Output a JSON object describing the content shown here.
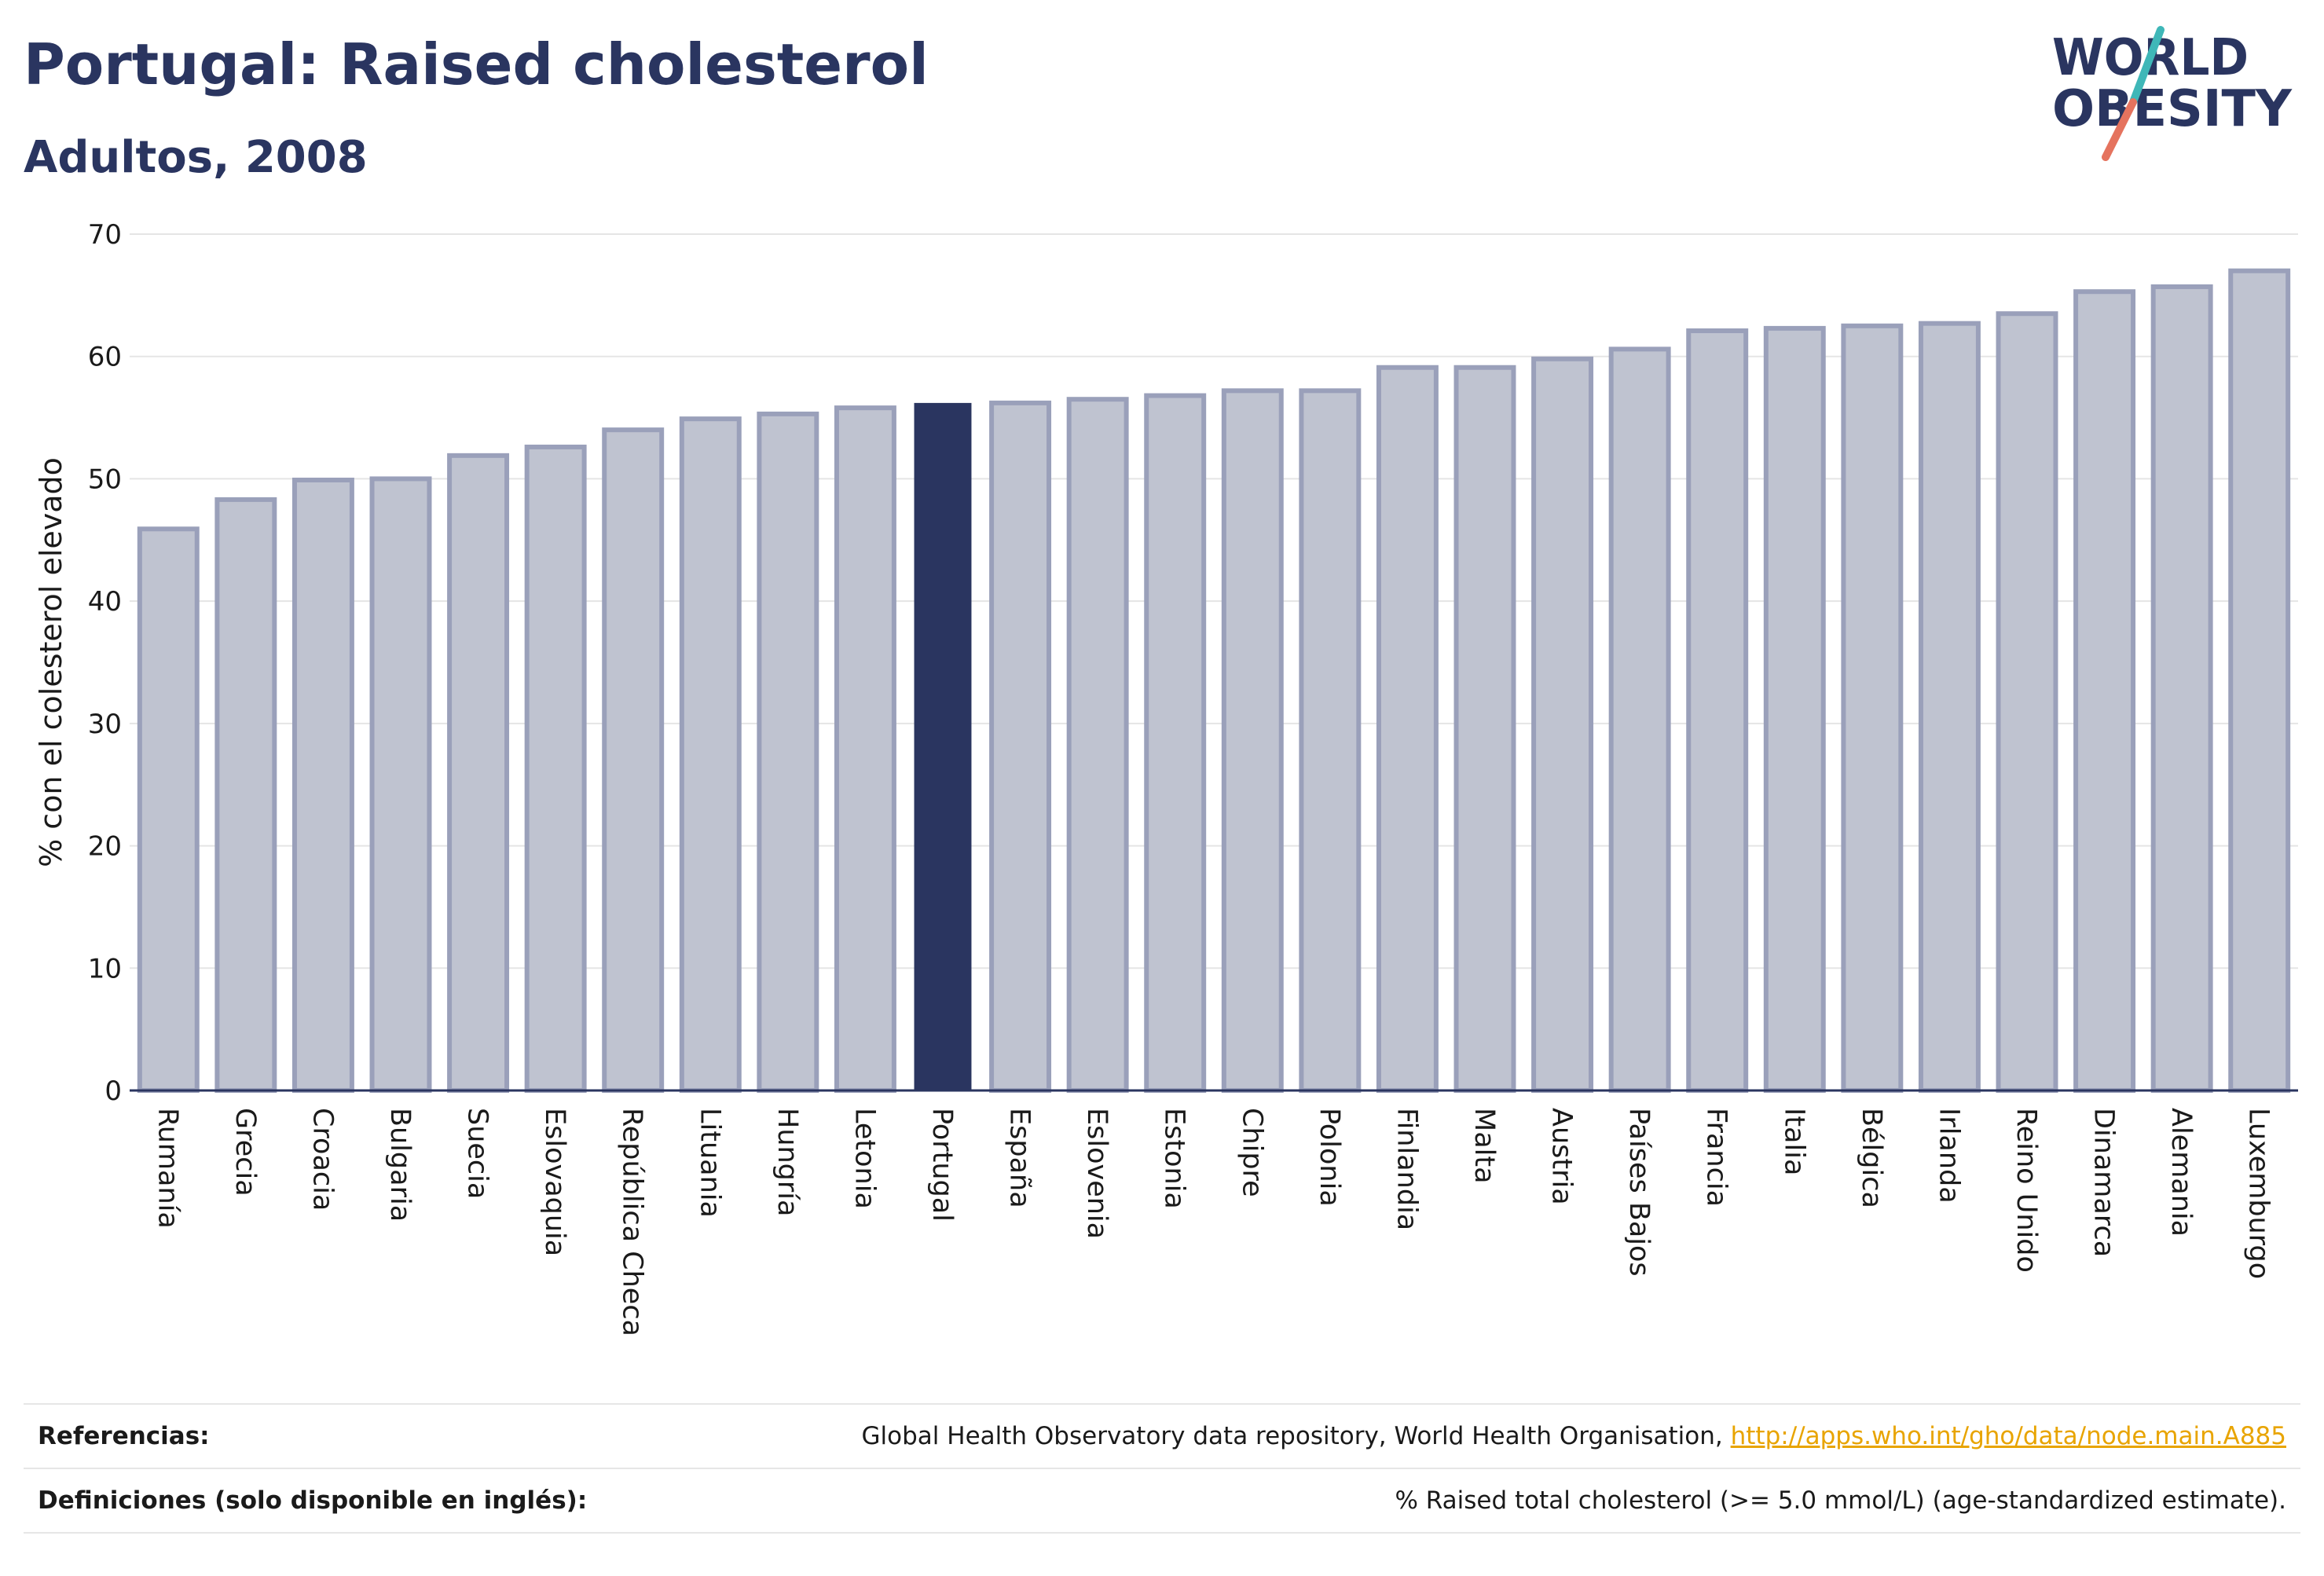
{
  "header": {
    "title": "Portugal: Raised cholesterol",
    "subtitle": "Adultos, 2008"
  },
  "logo": {
    "line1": "WORLD",
    "line2": "OBESITY",
    "slash_colors": [
      "#3fb7b8",
      "#e5735e"
    ]
  },
  "colors": {
    "bar_default": "#bfc3d0",
    "bar_default_stroke": "#9aa0ba",
    "bar_highlight": "#2a3560",
    "grid": "#e5e5e5",
    "axis": "#2a3560"
  },
  "chart_data": {
    "type": "bar",
    "title": "",
    "xlabel": "",
    "ylabel": "% con el colesterol elevado",
    "ylim": [
      0,
      70
    ],
    "yticks": [
      0,
      10,
      20,
      30,
      40,
      50,
      60,
      70
    ],
    "grid": true,
    "highlight": "Portugal",
    "categories": [
      "Rumanía",
      "Grecia",
      "Croacia",
      "Bulgaria",
      "Suecia",
      "Eslovaquia",
      "República Checa",
      "Lituania",
      "Hungría",
      "Letonia",
      "Portugal",
      "España",
      "Eslovenia",
      "Estonia",
      "Chipre",
      "Polonia",
      "Finlandia",
      "Malta",
      "Austria",
      "Países Bajos",
      "Francia",
      "Italia",
      "Bélgica",
      "Irlanda",
      "Reino Unido",
      "Dinamarca",
      "Alemania",
      "Luxemburgo"
    ],
    "values": [
      45.9,
      48.3,
      49.9,
      50.0,
      51.9,
      52.6,
      54.0,
      54.9,
      55.3,
      55.8,
      56.2,
      56.2,
      56.5,
      56.8,
      57.2,
      57.2,
      59.1,
      59.1,
      59.8,
      60.6,
      62.1,
      62.3,
      62.5,
      62.7,
      63.5,
      65.3,
      65.7,
      67.0
    ]
  },
  "footer": {
    "references_label": "Referencias:",
    "references_text": "Global Health Observatory data repository, World Health Organisation, ",
    "references_link": "http://apps.who.int/gho/data/node.main.A885",
    "definitions_label": "Definiciones (solo disponible en inglés):",
    "definitions_text": "% Raised total cholesterol (>= 5.0 mmol/L) (age-standardized estimate)."
  }
}
